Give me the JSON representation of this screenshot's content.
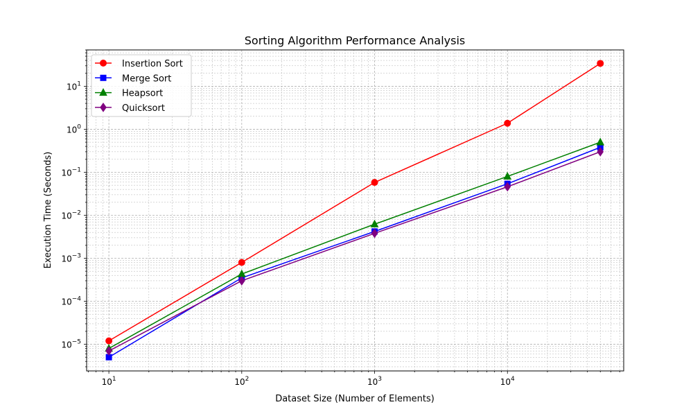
{
  "chart_data": {
    "type": "line",
    "title": "Sorting Algorithm Performance Analysis",
    "xlabel": "Dataset Size (Number of Elements)",
    "ylabel": "Execution Time (Seconds)",
    "xscale": "log",
    "yscale": "log",
    "xlim": [
      6.8,
      75000
    ],
    "ylim": [
      2.4e-06,
      70
    ],
    "grid": true,
    "legend_position": "top-left",
    "x": [
      10,
      100,
      1000,
      10000,
      50000
    ],
    "x_ticks": [
      {
        "value": 10,
        "base": "10",
        "exp": "1"
      },
      {
        "value": 100,
        "base": "10",
        "exp": "2"
      },
      {
        "value": 1000,
        "base": "10",
        "exp": "3"
      },
      {
        "value": 10000,
        "base": "10",
        "exp": "4"
      }
    ],
    "y_ticks": [
      {
        "value": 1e-05,
        "base": "10",
        "exp": "−5"
      },
      {
        "value": 0.0001,
        "base": "10",
        "exp": "−4"
      },
      {
        "value": 0.001,
        "base": "10",
        "exp": "−3"
      },
      {
        "value": 0.01,
        "base": "10",
        "exp": "−2"
      },
      {
        "value": 0.1,
        "base": "10",
        "exp": "−1"
      },
      {
        "value": 1,
        "base": "10",
        "exp": "0"
      },
      {
        "value": 10,
        "base": "10",
        "exp": "1"
      }
    ],
    "series": [
      {
        "name": "Insertion Sort",
        "color": "#ff0000",
        "marker": "circle",
        "values": [
          1.2e-05,
          0.0008,
          0.058,
          1.38,
          34
        ]
      },
      {
        "name": "Merge Sort",
        "color": "#0000ff",
        "marker": "square",
        "values": [
          5e-06,
          0.00035,
          0.0042,
          0.054,
          0.38
        ]
      },
      {
        "name": "Heapsort",
        "color": "#008000",
        "marker": "triangle",
        "values": [
          8e-06,
          0.00043,
          0.0062,
          0.08,
          0.5
        ]
      },
      {
        "name": "Quicksort",
        "color": "#800080",
        "marker": "diamond",
        "values": [
          7e-06,
          0.0003,
          0.0038,
          0.046,
          0.3
        ]
      }
    ]
  }
}
